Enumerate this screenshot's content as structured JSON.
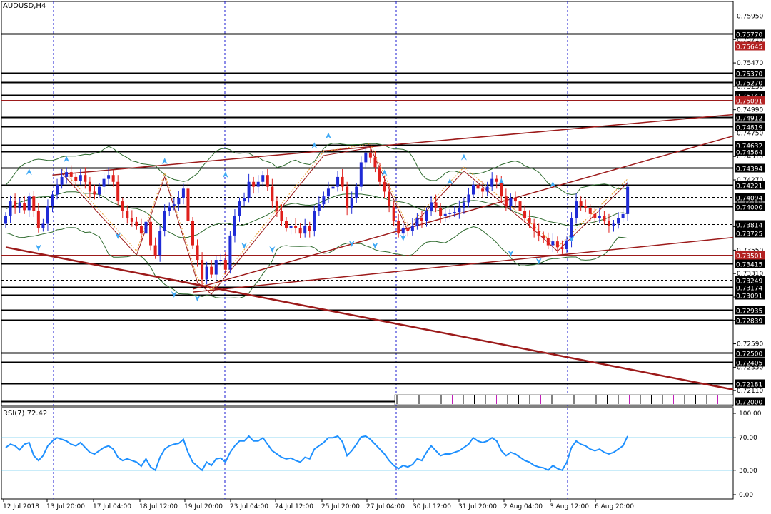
{
  "header": {
    "symbol_title": "AUDUSD,H4"
  },
  "rsi": {
    "title": "RSI(7) 72.42"
  },
  "colors": {
    "bull": "#1f2bd6",
    "bear": "#e0201c",
    "trend": "#9c1a1a",
    "band": "#2f6b2f",
    "rsi_line": "#1e90ff",
    "rsi_level": "#29b6e8",
    "grid_v": "#1a1ad0",
    "fractal": "#3fa9f5"
  },
  "chart_data": [
    {
      "type": "candlestick",
      "title": "AUDUSD,H4",
      "ylim": [
        0.7195,
        0.761
      ],
      "y_ticks": [
        "0.75950",
        "0.75710",
        "0.75470",
        "0.75230",
        "0.74990",
        "0.74750",
        "0.74510",
        "0.74270",
        "0.74030",
        "0.73790",
        "0.73550",
        "0.73310",
        "0.73070",
        "0.72830",
        "0.72590",
        "0.72350",
        "0.72110"
      ],
      "x_labels": [
        "12 Jul 2018",
        "13 Jul 20:00",
        "17 Jul 04:00",
        "18 Jul 12:00",
        "19 Jul 20:00",
        "23 Jul 04:00",
        "24 Jul 12:00",
        "25 Jul 20:00",
        "27 Jul 04:00",
        "30 Jul 12:00",
        "31 Jul 20:00",
        "2 Aug 04:00",
        "3 Aug 12:00",
        "6 Aug 20:00"
      ],
      "horizontal_levels": [
        {
          "value": "0.75770",
          "style": "solid",
          "color": "black"
        },
        {
          "value": "0.75645",
          "style": "solid",
          "color": "red"
        },
        {
          "value": "0.75370",
          "style": "solid",
          "color": "black"
        },
        {
          "value": "0.75270",
          "style": "solid",
          "color": "black"
        },
        {
          "value": "0.75142",
          "style": "solid",
          "color": "black"
        },
        {
          "value": "0.75091",
          "style": "solid",
          "color": "red"
        },
        {
          "value": "0.74912",
          "style": "solid",
          "color": "black"
        },
        {
          "value": "0.74819",
          "style": "solid",
          "color": "black"
        },
        {
          "value": "0.74632",
          "style": "solid",
          "color": "black"
        },
        {
          "value": "0.74564",
          "style": "solid",
          "color": "black"
        },
        {
          "value": "0.74394",
          "style": "solid",
          "color": "black"
        },
        {
          "value": "0.74221",
          "style": "solid",
          "color": "black"
        },
        {
          "value": "0.74094",
          "style": "dashed",
          "color": "black"
        },
        {
          "value": "0.74000",
          "style": "solid",
          "color": "black"
        },
        {
          "value": "0.73814",
          "style": "dashed",
          "color": "black"
        },
        {
          "value": "0.73725",
          "style": "dashed",
          "color": "black"
        },
        {
          "value": "0.73501",
          "style": "solid",
          "color": "red"
        },
        {
          "value": "0.73415",
          "style": "solid",
          "color": "black"
        },
        {
          "value": "0.73249",
          "style": "dashed",
          "color": "black"
        },
        {
          "value": "0.73174",
          "style": "solid",
          "color": "black"
        },
        {
          "value": "0.73091",
          "style": "solid",
          "color": "black"
        },
        {
          "value": "0.72935",
          "style": "solid",
          "color": "black"
        },
        {
          "value": "0.72839",
          "style": "solid",
          "color": "black"
        },
        {
          "value": "0.72500",
          "style": "solid",
          "color": "black"
        },
        {
          "value": "0.72405",
          "style": "solid",
          "color": "black"
        },
        {
          "value": "0.72181",
          "style": "solid",
          "color": "black"
        },
        {
          "value": "0.72000",
          "style": "solid",
          "color": "black"
        }
      ],
      "close": [
        0.739,
        0.7405,
        0.7398,
        0.7403,
        0.7396,
        0.741,
        0.7395,
        0.7378,
        0.7382,
        0.74,
        0.7412,
        0.7422,
        0.743,
        0.7435,
        0.743,
        0.7426,
        0.7432,
        0.7425,
        0.7415,
        0.7412,
        0.742,
        0.7428,
        0.7432,
        0.7425,
        0.7405,
        0.7395,
        0.7388,
        0.7384,
        0.738,
        0.7372,
        0.7384,
        0.736,
        0.735,
        0.7375,
        0.7395,
        0.74,
        0.7402,
        0.7408,
        0.7418,
        0.7385,
        0.736,
        0.7345,
        0.7325,
        0.7338,
        0.733,
        0.7345,
        0.7345,
        0.7335,
        0.737,
        0.739,
        0.7405,
        0.7408,
        0.7425,
        0.742,
        0.7425,
        0.7432,
        0.742,
        0.7405,
        0.7395,
        0.7385,
        0.7378,
        0.738,
        0.7378,
        0.7372,
        0.738,
        0.7375,
        0.7395,
        0.7402,
        0.741,
        0.7418,
        0.742,
        0.743,
        0.742,
        0.7398,
        0.7408,
        0.742,
        0.7445,
        0.7455,
        0.745,
        0.744,
        0.7425,
        0.7415,
        0.74,
        0.7385,
        0.7372,
        0.7378,
        0.7375,
        0.738,
        0.7388,
        0.7385,
        0.7395,
        0.7404,
        0.7398,
        0.739,
        0.7392,
        0.7393,
        0.7394,
        0.7398,
        0.7404,
        0.7412,
        0.7422,
        0.7418,
        0.7415,
        0.742,
        0.7428,
        0.7425,
        0.741,
        0.74,
        0.7408,
        0.7405,
        0.7395,
        0.7388,
        0.7382,
        0.7375,
        0.737,
        0.7367,
        0.736,
        0.7364,
        0.7358,
        0.7356,
        0.7365,
        0.7388,
        0.7405,
        0.74,
        0.7398,
        0.7392,
        0.7388,
        0.739,
        0.7385,
        0.738,
        0.7382,
        0.7388,
        0.7392,
        0.742
      ]
    },
    {
      "type": "line",
      "title": "RSI(7) 72.42",
      "ylim": [
        0,
        100
      ],
      "y_ticks": [
        "100.00",
        "70.00",
        "30.00",
        "0.00"
      ],
      "levels": [
        70,
        30
      ],
      "values": [
        58,
        62,
        60,
        55,
        62,
        64,
        48,
        42,
        48,
        60,
        66,
        70,
        68,
        66,
        62,
        60,
        64,
        58,
        52,
        50,
        54,
        58,
        60,
        56,
        46,
        42,
        44,
        42,
        40,
        35,
        44,
        34,
        30,
        46,
        56,
        60,
        62,
        63,
        68,
        52,
        40,
        35,
        30,
        40,
        36,
        44,
        45,
        40,
        52,
        60,
        66,
        66,
        72,
        66,
        66,
        70,
        62,
        54,
        50,
        46,
        44,
        45,
        42,
        40,
        46,
        44,
        56,
        60,
        64,
        70,
        70,
        72,
        65,
        48,
        54,
        62,
        71,
        72,
        68,
        62,
        56,
        50,
        42,
        36,
        32,
        36,
        34,
        37,
        44,
        42,
        52,
        60,
        54,
        48,
        50,
        50,
        52,
        54,
        58,
        62,
        70,
        66,
        64,
        66,
        70,
        66,
        54,
        48,
        52,
        50,
        46,
        42,
        40,
        36,
        34,
        33,
        30,
        36,
        32,
        30,
        40,
        58,
        66,
        62,
        60,
        56,
        54,
        56,
        52,
        50,
        52,
        56,
        60,
        72
      ]
    }
  ]
}
